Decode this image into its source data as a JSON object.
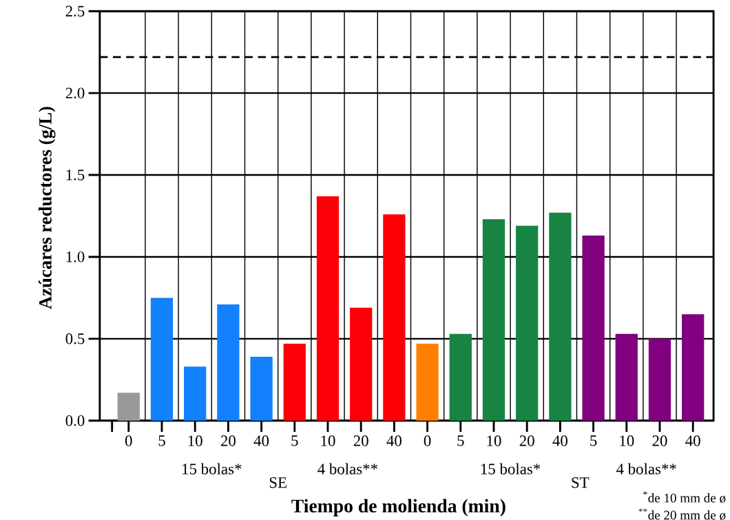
{
  "chart_data": {
    "type": "bar",
    "xlabel": "Tiempo de molienda (min)",
    "ylabel": "Azúcares reductores (g/L)",
    "categories": [
      "0",
      "5",
      "10",
      "20",
      "40",
      "5",
      "10",
      "20",
      "40",
      "0",
      "5",
      "10",
      "20",
      "40",
      "5",
      "10",
      "20",
      "40"
    ],
    "values": [
      0.17,
      0.75,
      0.33,
      0.71,
      0.39,
      0.47,
      1.37,
      0.69,
      1.26,
      0.47,
      0.53,
      1.23,
      1.19,
      1.27,
      1.13,
      0.53,
      0.5,
      0.65
    ],
    "colors": [
      "#999999",
      "#1380fe",
      "#1380fe",
      "#1380fe",
      "#1380fe",
      "#fc0008",
      "#fc0008",
      "#fc0008",
      "#fc0008",
      "#ff8000",
      "#178443",
      "#178443",
      "#178443",
      "#178443",
      "#800080",
      "#800080",
      "#800080",
      "#800080"
    ],
    "ylim": [
      0,
      2.5
    ],
    "yticks": [
      {
        "value": 0,
        "label": "0.0"
      },
      0.5,
      {
        "value": 1,
        "label": "1.0"
      },
      1.5,
      {
        "value": 2,
        "label": "2.0"
      },
      2.5
    ],
    "grid": true,
    "ref_lines": [
      {
        "axis": "y",
        "value": 2.22,
        "line_style": "dashed",
        "color": "#000000"
      }
    ],
    "annotations": [
      "15 bolas*",
      "SE",
      "4 bolas**",
      "15 bolas*",
      "ST",
      "4 bolas**",
      "$^{*}$de 10 mm de ø",
      "$^{**}$de 20 mm de ø"
    ]
  }
}
